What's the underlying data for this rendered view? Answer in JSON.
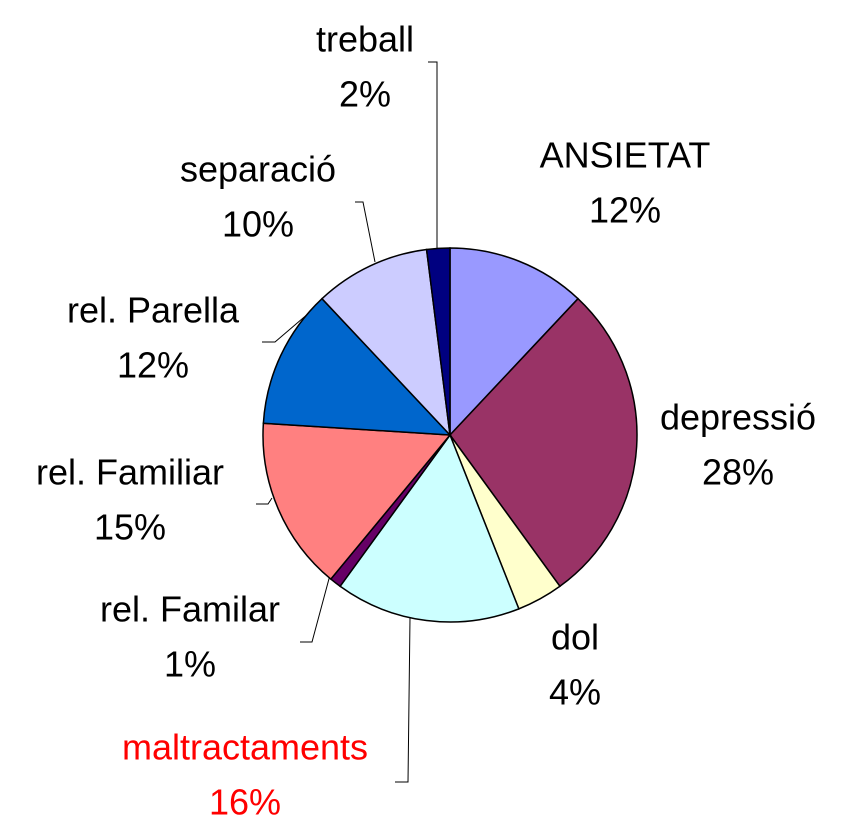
{
  "chart_data": {
    "type": "pie",
    "categories": [
      "ANSIETAT",
      "depressió",
      "dol",
      "maltractaments",
      "rel. Familar",
      "rel. Familiar",
      "rel. Parella",
      "separació",
      "treball"
    ],
    "values": [
      12,
      28,
      4,
      16,
      1,
      15,
      12,
      10,
      2
    ],
    "value_labels": [
      "12%",
      "28%",
      "4%",
      "16%",
      "1%",
      "15%",
      "12%",
      "10%",
      "2%"
    ],
    "colors": [
      "#9999ff",
      "#993366",
      "#ffffcc",
      "#ccffff",
      "#660066",
      "#ff8080",
      "#0066cc",
      "#ccccff",
      "#000080"
    ],
    "label_colors": [
      "#000000",
      "#000000",
      "#000000",
      "#ff0000",
      "#000000",
      "#000000",
      "#000000",
      "#000000",
      "#000000"
    ]
  }
}
